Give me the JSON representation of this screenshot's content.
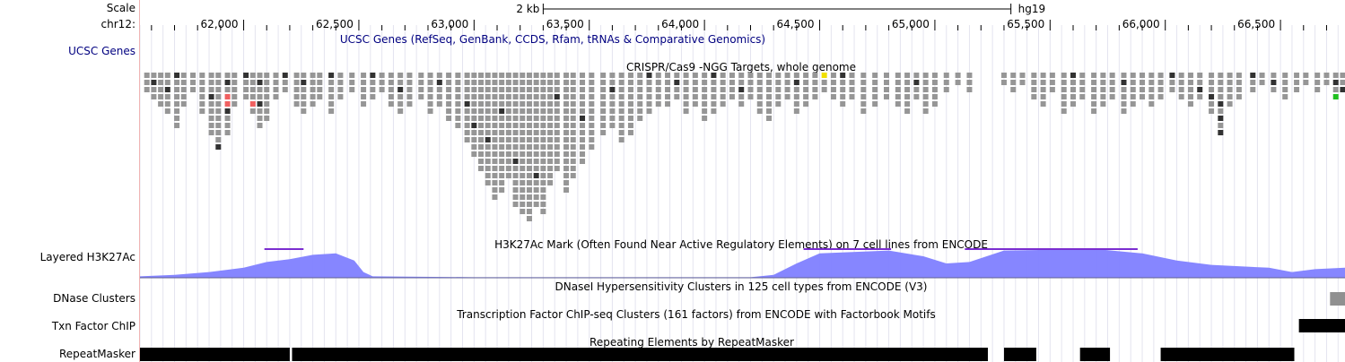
{
  "labels": {
    "scale": "Scale",
    "chrom": "chr12:",
    "ucsc_genes": "UCSC Genes",
    "h3k27ac": "Layered H3K27Ac",
    "dnase": "DNase Clusters",
    "txn": "Txn Factor ChIP",
    "repeatmasker": "RepeatMasker"
  },
  "scale_bar": {
    "length_label": "2 kb",
    "assembly": "hg19",
    "start_bp": 63300,
    "end_bp": 65330
  },
  "ruler": {
    "start_bp": 61550,
    "end_bp": 66780,
    "ticks": [
      "62,000",
      "62,500",
      "63,000",
      "63,500",
      "64,000",
      "64,500",
      "65,000",
      "65,500",
      "66,000",
      "66,500"
    ],
    "tick_values": [
      62000,
      62500,
      63000,
      63500,
      64000,
      64500,
      65000,
      65500,
      66000,
      66500
    ]
  },
  "track_titles": {
    "genes": "UCSC Genes (RefSeq, GenBank, CCDS, Rfam, tRNAs & Comparative Genomics)",
    "crispr": "CRISPR/Cas9 -NGG Targets, whole genome",
    "h3k27ac": "H3K27Ac Mark (Often Found Near Active Regulatory Elements) on 7 cell lines from ENCODE",
    "dnase": "DNaseI Hypersensitivity Clusters in 125 cell types from ENCODE (V3)",
    "txn": "Transcription Factor ChIP-seq Clusters (161 factors) from ENCODE with Factorbook Motifs",
    "repeatmasker": "Repeating Elements by RepeatMasker"
  },
  "colors": {
    "gene_title": "#000080",
    "h3k27ac_fill": "#8080ff",
    "h3k27ac_peak": "#7b2dd0",
    "crispr_gray": "#969696",
    "crispr_dark": "#323232",
    "crispr_red": "#f06060",
    "crispr_yellow": "#f0e000",
    "crispr_green": "#20c020",
    "grid": "#e4e4ef",
    "divider": "#f0b4b4"
  },
  "h3k27ac_signal": [
    [
      61550,
      0.05
    ],
    [
      61700,
      0.1
    ],
    [
      61850,
      0.2
    ],
    [
      62000,
      0.35
    ],
    [
      62100,
      0.55
    ],
    [
      62200,
      0.65
    ],
    [
      62300,
      0.8
    ],
    [
      62400,
      0.85
    ],
    [
      62480,
      0.6
    ],
    [
      62520,
      0.2
    ],
    [
      62560,
      0.05
    ],
    [
      63000,
      0.02
    ],
    [
      64000,
      0.02
    ],
    [
      64200,
      0.02
    ],
    [
      64300,
      0.1
    ],
    [
      64400,
      0.5
    ],
    [
      64500,
      0.85
    ],
    [
      64800,
      0.95
    ],
    [
      64950,
      0.75
    ],
    [
      65050,
      0.5
    ],
    [
      65150,
      0.55
    ],
    [
      65300,
      0.95
    ],
    [
      65700,
      1.0
    ],
    [
      65900,
      0.85
    ],
    [
      66050,
      0.6
    ],
    [
      66200,
      0.45
    ],
    [
      66450,
      0.35
    ],
    [
      66550,
      0.2
    ],
    [
      66650,
      0.3
    ],
    [
      66780,
      0.35
    ]
  ],
  "h3k27ac_peaks": [
    [
      62090,
      62260
    ],
    [
      64430,
      64810
    ],
    [
      65130,
      65880
    ]
  ],
  "dnase_clusters": [
    [
      66715,
      66780
    ]
  ],
  "txn_clusters": [
    [
      66580,
      66780
    ]
  ],
  "repeats": [
    [
      61550,
      62200
    ],
    [
      62210,
      65230
    ],
    [
      65300,
      65440
    ],
    [
      65630,
      65760
    ],
    [
      65980,
      66560
    ]
  ],
  "crispr_columns": [
    {
      "bp": 61580,
      "n": 3,
      "dark": []
    },
    {
      "bp": 61610,
      "n": 4,
      "dark": [
        1
      ]
    },
    {
      "bp": 61640,
      "n": 5,
      "dark": []
    },
    {
      "bp": 61670,
      "n": 6,
      "dark": [
        2
      ]
    },
    {
      "bp": 61710,
      "n": 8,
      "dark": [
        0
      ]
    },
    {
      "bp": 61740,
      "n": 5,
      "dark": []
    },
    {
      "bp": 61780,
      "n": 3,
      "dark": []
    },
    {
      "bp": 61820,
      "n": 6,
      "dark": []
    },
    {
      "bp": 61860,
      "n": 9,
      "dark": [
        3
      ]
    },
    {
      "bp": 61890,
      "n": 11,
      "dark": [
        10
      ]
    },
    {
      "bp": 61930,
      "n": 9,
      "dark": [
        1,
        5
      ],
      "red": [
        3,
        4
      ]
    },
    {
      "bp": 61960,
      "n": 5,
      "dark": []
    },
    {
      "bp": 62010,
      "n": 4,
      "dark": [
        0
      ]
    },
    {
      "bp": 62040,
      "n": 6,
      "dark": [],
      "red": [
        4
      ]
    },
    {
      "bp": 62070,
      "n": 8,
      "dark": [
        1,
        4
      ]
    },
    {
      "bp": 62100,
      "n": 7,
      "dark": []
    },
    {
      "bp": 62140,
      "n": 4,
      "dark": []
    },
    {
      "bp": 62180,
      "n": 3,
      "dark": [
        0
      ]
    },
    {
      "bp": 62230,
      "n": 5,
      "dark": []
    },
    {
      "bp": 62260,
      "n": 6,
      "dark": [
        1
      ]
    },
    {
      "bp": 62300,
      "n": 5,
      "dark": []
    },
    {
      "bp": 62330,
      "n": 4,
      "dark": []
    },
    {
      "bp": 62380,
      "n": 6,
      "dark": [
        0
      ]
    },
    {
      "bp": 62420,
      "n": 4,
      "dark": []
    },
    {
      "bp": 62470,
      "n": 3,
      "dark": []
    },
    {
      "bp": 62520,
      "n": 5,
      "dark": []
    },
    {
      "bp": 62560,
      "n": 4,
      "dark": [
        0
      ]
    },
    {
      "bp": 62600,
      "n": 3,
      "dark": []
    },
    {
      "bp": 62640,
      "n": 5,
      "dark": []
    },
    {
      "bp": 62680,
      "n": 6,
      "dark": [
        2
      ]
    },
    {
      "bp": 62720,
      "n": 5,
      "dark": []
    },
    {
      "bp": 62770,
      "n": 4,
      "dark": []
    },
    {
      "bp": 62810,
      "n": 6,
      "dark": []
    },
    {
      "bp": 62850,
      "n": 5,
      "dark": [
        1
      ]
    },
    {
      "bp": 62890,
      "n": 7,
      "dark": []
    },
    {
      "bp": 62930,
      "n": 8,
      "dark": []
    },
    {
      "bp": 62970,
      "n": 10,
      "dark": [
        4
      ]
    },
    {
      "bp": 63000,
      "n": 12,
      "dark": [
        7
      ]
    },
    {
      "bp": 63030,
      "n": 14,
      "dark": []
    },
    {
      "bp": 63060,
      "n": 16,
      "dark": [
        9
      ]
    },
    {
      "bp": 63090,
      "n": 18,
      "dark": []
    },
    {
      "bp": 63120,
      "n": 17,
      "dark": [
        5
      ]
    },
    {
      "bp": 63150,
      "n": 15,
      "dark": []
    },
    {
      "bp": 63180,
      "n": 19,
      "dark": [
        12
      ]
    },
    {
      "bp": 63210,
      "n": 20,
      "dark": []
    },
    {
      "bp": 63240,
      "n": 21,
      "dark": []
    },
    {
      "bp": 63270,
      "n": 19,
      "dark": [
        14
      ]
    },
    {
      "bp": 63300,
      "n": 20,
      "dark": []
    },
    {
      "bp": 63330,
      "n": 16,
      "dark": []
    },
    {
      "bp": 63360,
      "n": 14,
      "dark": [
        3
      ]
    },
    {
      "bp": 63400,
      "n": 17,
      "dark": []
    },
    {
      "bp": 63430,
      "n": 15,
      "dark": []
    },
    {
      "bp": 63470,
      "n": 13,
      "dark": [
        6
      ]
    },
    {
      "bp": 63510,
      "n": 11,
      "dark": []
    },
    {
      "bp": 63560,
      "n": 9,
      "dark": []
    },
    {
      "bp": 63600,
      "n": 8,
      "dark": [
        2
      ]
    },
    {
      "bp": 63640,
      "n": 10,
      "dark": []
    },
    {
      "bp": 63680,
      "n": 9,
      "dark": []
    },
    {
      "bp": 63720,
      "n": 7,
      "dark": []
    },
    {
      "bp": 63760,
      "n": 6,
      "dark": [
        0
      ]
    },
    {
      "bp": 63800,
      "n": 5,
      "dark": []
    },
    {
      "bp": 63840,
      "n": 5,
      "dark": []
    },
    {
      "bp": 63880,
      "n": 4,
      "dark": [
        1
      ]
    },
    {
      "bp": 63920,
      "n": 6,
      "dark": []
    },
    {
      "bp": 63960,
      "n": 5,
      "dark": []
    },
    {
      "bp": 64000,
      "n": 7,
      "dark": []
    },
    {
      "bp": 64040,
      "n": 6,
      "dark": [
        0
      ]
    },
    {
      "bp": 64080,
      "n": 5,
      "dark": []
    },
    {
      "bp": 64120,
      "n": 4,
      "dark": []
    },
    {
      "bp": 64160,
      "n": 5,
      "dark": [
        2
      ]
    },
    {
      "bp": 64200,
      "n": 4,
      "dark": []
    },
    {
      "bp": 64240,
      "n": 6,
      "dark": []
    },
    {
      "bp": 64280,
      "n": 7,
      "dark": []
    },
    {
      "bp": 64320,
      "n": 5,
      "dark": []
    },
    {
      "bp": 64360,
      "n": 4,
      "dark": []
    },
    {
      "bp": 64400,
      "n": 6,
      "dark": [
        1
      ]
    },
    {
      "bp": 64440,
      "n": 5,
      "dark": []
    },
    {
      "bp": 64480,
      "n": 4,
      "dark": []
    },
    {
      "bp": 64520,
      "n": 3,
      "dark": [],
      "yellow": [
        0
      ]
    },
    {
      "bp": 64560,
      "n": 4,
      "dark": []
    },
    {
      "bp": 64600,
      "n": 5,
      "dark": [
        0
      ]
    },
    {
      "bp": 64640,
      "n": 4,
      "dark": []
    },
    {
      "bp": 64690,
      "n": 6,
      "dark": []
    },
    {
      "bp": 64740,
      "n": 5,
      "dark": []
    },
    {
      "bp": 64790,
      "n": 4,
      "dark": []
    },
    {
      "bp": 64840,
      "n": 5,
      "dark": []
    },
    {
      "bp": 64880,
      "n": 6,
      "dark": []
    },
    {
      "bp": 64920,
      "n": 4,
      "dark": [
        1
      ]
    },
    {
      "bp": 64960,
      "n": 6,
      "dark": []
    },
    {
      "bp": 65000,
      "n": 5,
      "dark": []
    },
    {
      "bp": 65050,
      "n": 3,
      "dark": []
    },
    {
      "bp": 65100,
      "n": 2,
      "dark": []
    },
    {
      "bp": 65150,
      "n": 3,
      "dark": []
    },
    {
      "bp": 65300,
      "n": 2,
      "dark": []
    },
    {
      "bp": 65340,
      "n": 3,
      "dark": []
    },
    {
      "bp": 65380,
      "n": 2,
      "dark": []
    },
    {
      "bp": 65430,
      "n": 4,
      "dark": []
    },
    {
      "bp": 65470,
      "n": 5,
      "dark": []
    },
    {
      "bp": 65510,
      "n": 3,
      "dark": []
    },
    {
      "bp": 65560,
      "n": 6,
      "dark": []
    },
    {
      "bp": 65600,
      "n": 5,
      "dark": [
        0
      ]
    },
    {
      "bp": 65640,
      "n": 4,
      "dark": []
    },
    {
      "bp": 65690,
      "n": 6,
      "dark": []
    },
    {
      "bp": 65730,
      "n": 5,
      "dark": []
    },
    {
      "bp": 65770,
      "n": 4,
      "dark": []
    },
    {
      "bp": 65820,
      "n": 6,
      "dark": [
        1
      ]
    },
    {
      "bp": 65860,
      "n": 5,
      "dark": []
    },
    {
      "bp": 65900,
      "n": 4,
      "dark": []
    },
    {
      "bp": 65940,
      "n": 5,
      "dark": []
    },
    {
      "bp": 65980,
      "n": 4,
      "dark": []
    },
    {
      "bp": 66030,
      "n": 3,
      "dark": [
        0
      ]
    },
    {
      "bp": 66070,
      "n": 4,
      "dark": []
    },
    {
      "bp": 66110,
      "n": 5,
      "dark": []
    },
    {
      "bp": 66150,
      "n": 4,
      "dark": [
        2
      ]
    },
    {
      "bp": 66200,
      "n": 6,
      "dark": [
        3
      ]
    },
    {
      "bp": 66240,
      "n": 9,
      "dark": [
        4,
        6,
        8
      ]
    },
    {
      "bp": 66280,
      "n": 5,
      "dark": []
    },
    {
      "bp": 66320,
      "n": 4,
      "dark": []
    },
    {
      "bp": 66380,
      "n": 3,
      "dark": [
        0
      ]
    },
    {
      "bp": 66420,
      "n": 2,
      "dark": []
    },
    {
      "bp": 66470,
      "n": 3,
      "dark": [
        1
      ]
    },
    {
      "bp": 66520,
      "n": 4,
      "dark": []
    },
    {
      "bp": 66570,
      "n": 3,
      "dark": []
    },
    {
      "bp": 66610,
      "n": 2,
      "dark": []
    },
    {
      "bp": 66660,
      "n": 3,
      "dark": []
    },
    {
      "bp": 66700,
      "n": 2,
      "dark": []
    },
    {
      "bp": 66740,
      "n": 4,
      "dark": [
        1
      ],
      "green": [
        3
      ]
    },
    {
      "bp": 66770,
      "n": 3,
      "dark": [
        2
      ]
    }
  ]
}
